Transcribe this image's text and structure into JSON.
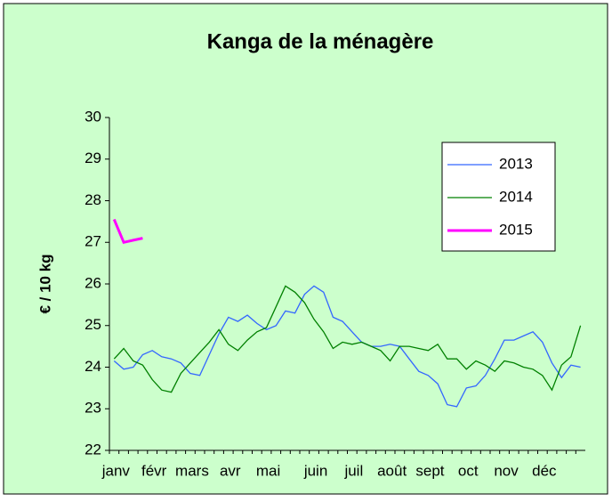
{
  "chart_data": {
    "type": "line",
    "title": "Kanga de la ménagère",
    "y_label": "€ / 10 kg",
    "categories": [
      "janv",
      null,
      null,
      null,
      "févr",
      null,
      null,
      null,
      "mars",
      null,
      null,
      null,
      "avr",
      null,
      null,
      null,
      "mai",
      null,
      null,
      null,
      null,
      "juin",
      null,
      null,
      null,
      "juil",
      null,
      null,
      null,
      "août",
      null,
      null,
      null,
      "sept",
      null,
      null,
      null,
      "oct",
      null,
      null,
      null,
      "nov",
      null,
      null,
      null,
      "déc",
      null,
      null,
      null,
      null
    ],
    "series": [
      {
        "name": "2013",
        "color": "#3366ff",
        "width": 1.3,
        "values": [
          24.15,
          23.95,
          24.0,
          24.3,
          24.4,
          24.25,
          24.2,
          24.1,
          23.85,
          23.8,
          24.3,
          24.8,
          25.2,
          25.1,
          25.25,
          25.05,
          24.9,
          25.0,
          25.35,
          25.3,
          25.75,
          25.95,
          25.8,
          25.2,
          25.1,
          24.85,
          24.6,
          24.5,
          24.5,
          24.55,
          24.5,
          24.2,
          23.9,
          23.8,
          23.6,
          23.1,
          23.05,
          23.5,
          23.55,
          23.8,
          24.2,
          24.65,
          24.65,
          24.75,
          24.85,
          24.6,
          24.1,
          23.75,
          24.05,
          24.0
        ]
      },
      {
        "name": "2014",
        "color": "#008000",
        "width": 1.3,
        "values": [
          24.2,
          24.45,
          24.15,
          24.05,
          23.7,
          23.45,
          23.4,
          23.85,
          24.1,
          24.35,
          24.6,
          24.9,
          24.55,
          24.4,
          24.65,
          24.85,
          24.95,
          25.45,
          25.95,
          25.8,
          25.55,
          25.15,
          24.85,
          24.45,
          24.6,
          24.55,
          24.6,
          24.5,
          24.4,
          24.15,
          24.5,
          24.5,
          24.45,
          24.4,
          24.55,
          24.2,
          24.2,
          23.95,
          24.15,
          24.05,
          23.9,
          24.15,
          24.1,
          24.0,
          23.95,
          23.8,
          23.45,
          24.05,
          24.25,
          25.0
        ]
      },
      {
        "name": "2015",
        "color": "#ff00ff",
        "width": 3,
        "values": [
          27.55,
          27.0,
          27.05,
          27.1,
          null,
          null,
          null,
          null,
          null,
          null,
          null,
          null,
          null,
          null,
          null,
          null,
          null,
          null,
          null,
          null,
          null,
          null,
          null,
          null,
          null,
          null,
          null,
          null,
          null,
          null,
          null,
          null,
          null,
          null,
          null,
          null,
          null,
          null,
          null,
          null,
          null,
          null,
          null,
          null,
          null,
          null,
          null,
          null,
          null,
          null
        ]
      }
    ],
    "ylim": [
      22,
      30
    ],
    "yticks": [
      22,
      23,
      24,
      25,
      26,
      27,
      28,
      29,
      30
    ],
    "grid": false,
    "legend": "upper right",
    "background": "#ccffcc"
  }
}
